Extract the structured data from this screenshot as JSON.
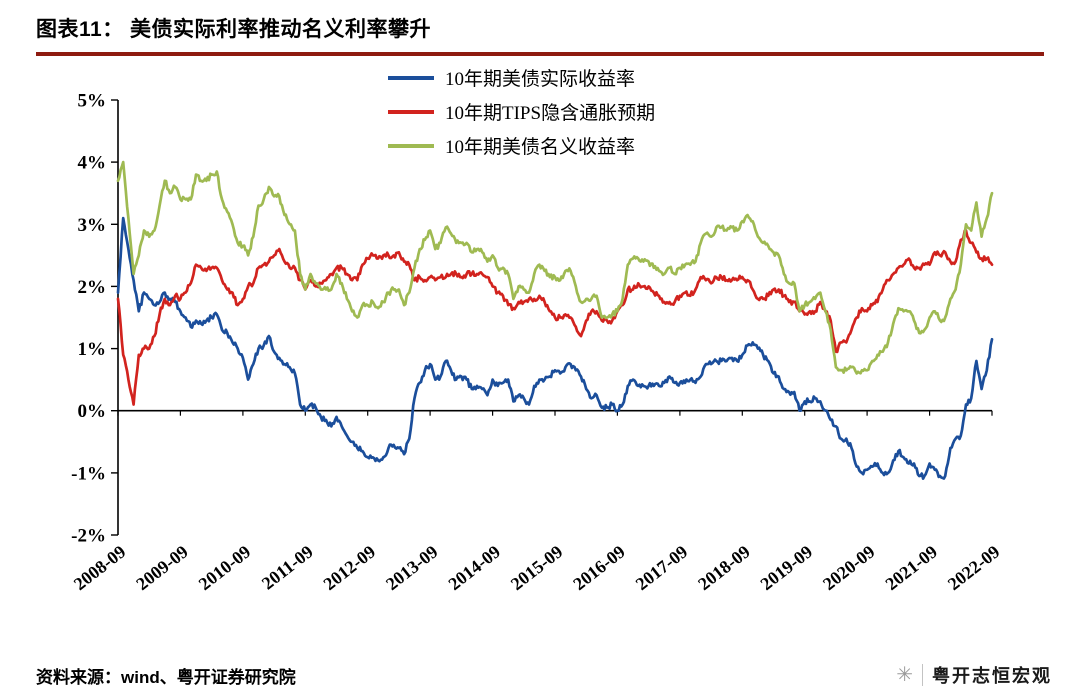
{
  "header": {
    "title": "图表11： 美债实际利率推动名义利率攀升",
    "accent_color": "#8e1b10"
  },
  "icons": {
    "watermark_logo": "✳"
  },
  "footer": {
    "source": "资料来源：wind、粤开证券研究院",
    "watermark": "粤开志恒宏观"
  },
  "chart_data": {
    "type": "line",
    "x_unit": "month",
    "x_range": [
      "2008-09",
      "2022-09"
    ],
    "ylim": [
      -2,
      5
    ],
    "grid": "none",
    "legend_position": "top-center",
    "y_ticks": [
      {
        "label": "5%",
        "value": 5
      },
      {
        "label": "4%",
        "value": 4
      },
      {
        "label": "3%",
        "value": 3
      },
      {
        "label": "2%",
        "value": 2
      },
      {
        "label": "1%",
        "value": 1
      },
      {
        "label": "0%",
        "value": 0
      },
      {
        "label": "-1%",
        "value": -1
      },
      {
        "label": "-2%",
        "value": -2
      }
    ],
    "x_ticks": [
      {
        "label": "2008-09",
        "month_index": 0
      },
      {
        "label": "2009-09",
        "month_index": 12
      },
      {
        "label": "2010-09",
        "month_index": 24
      },
      {
        "label": "2011-09",
        "month_index": 36
      },
      {
        "label": "2012-09",
        "month_index": 48
      },
      {
        "label": "2013-09",
        "month_index": 60
      },
      {
        "label": "2014-09",
        "month_index": 72
      },
      {
        "label": "2015-09",
        "month_index": 84
      },
      {
        "label": "2016-09",
        "month_index": 96
      },
      {
        "label": "2017-09",
        "month_index": 108
      },
      {
        "label": "2018-09",
        "month_index": 120
      },
      {
        "label": "2019-09",
        "month_index": 132
      },
      {
        "label": "2020-09",
        "month_index": 144
      },
      {
        "label": "2021-09",
        "month_index": 156
      },
      {
        "label": "2022-09",
        "month_index": 168
      }
    ],
    "series": [
      {
        "name": "10年期美债实际收益率",
        "color": "#1b4e9b",
        "values": [
          1.9,
          3.1,
          2.6,
          2.1,
          1.6,
          1.9,
          1.8,
          1.7,
          1.75,
          1.9,
          1.8,
          1.75,
          1.6,
          1.5,
          1.35,
          1.45,
          1.4,
          1.45,
          1.5,
          1.55,
          1.3,
          1.25,
          1.1,
          1.0,
          0.85,
          0.5,
          0.75,
          1.0,
          1.05,
          1.2,
          0.95,
          0.85,
          0.75,
          0.7,
          0.6,
          0.1,
          0.0,
          0.1,
          0.05,
          -0.1,
          -0.15,
          -0.25,
          -0.1,
          -0.25,
          -0.4,
          -0.5,
          -0.6,
          -0.65,
          -0.75,
          -0.75,
          -0.8,
          -0.75,
          -0.6,
          -0.55,
          -0.6,
          -0.7,
          -0.45,
          0.2,
          0.45,
          0.65,
          0.75,
          0.5,
          0.55,
          0.8,
          0.65,
          0.5,
          0.55,
          0.5,
          0.35,
          0.4,
          0.35,
          0.25,
          0.5,
          0.4,
          0.45,
          0.5,
          0.15,
          0.25,
          0.2,
          0.1,
          0.4,
          0.5,
          0.5,
          0.55,
          0.65,
          0.6,
          0.7,
          0.75,
          0.65,
          0.55,
          0.35,
          0.2,
          0.25,
          0.05,
          0.05,
          0.1,
          0.0,
          0.1,
          0.4,
          0.5,
          0.4,
          0.4,
          0.4,
          0.4,
          0.4,
          0.45,
          0.55,
          0.45,
          0.45,
          0.45,
          0.5,
          0.45,
          0.55,
          0.75,
          0.75,
          0.8,
          0.8,
          0.8,
          0.85,
          0.8,
          0.9,
          1.05,
          1.1,
          1.0,
          0.9,
          0.8,
          0.6,
          0.55,
          0.35,
          0.3,
          0.3,
          0.0,
          0.15,
          0.15,
          0.2,
          0.15,
          0.0,
          -0.15,
          -0.25,
          -0.45,
          -0.45,
          -0.6,
          -0.9,
          -1.0,
          -0.95,
          -0.9,
          -0.85,
          -1.0,
          -1.0,
          -0.8,
          -0.65,
          -0.75,
          -0.85,
          -0.85,
          -1.05,
          -1.05,
          -0.85,
          -0.95,
          -1.05,
          -1.05,
          -0.6,
          -0.45,
          -0.4,
          0.1,
          0.2,
          0.8,
          0.35,
          0.65,
          1.15
        ]
      },
      {
        "name": "10年期TIPS隐含通胀预期",
        "color": "#d2231e",
        "values": [
          1.8,
          0.9,
          0.5,
          0.1,
          0.9,
          1.0,
          1.0,
          1.2,
          1.55,
          1.8,
          1.7,
          1.85,
          1.8,
          1.9,
          2.05,
          2.35,
          2.3,
          2.25,
          2.3,
          2.3,
          2.1,
          1.95,
          1.9,
          1.7,
          1.8,
          2.0,
          2.05,
          2.3,
          2.35,
          2.4,
          2.5,
          2.6,
          2.4,
          2.3,
          2.3,
          2.1,
          1.95,
          2.1,
          2.0,
          2.05,
          2.1,
          2.2,
          2.3,
          2.3,
          2.2,
          2.1,
          2.1,
          2.35,
          2.45,
          2.5,
          2.45,
          2.5,
          2.5,
          2.5,
          2.55,
          2.4,
          2.35,
          2.1,
          2.15,
          2.1,
          2.15,
          2.1,
          2.15,
          2.15,
          2.2,
          2.2,
          2.15,
          2.2,
          2.2,
          2.2,
          2.2,
          2.15,
          2.0,
          1.9,
          1.85,
          1.7,
          1.65,
          1.75,
          1.75,
          1.8,
          1.8,
          1.85,
          1.75,
          1.6,
          1.5,
          1.5,
          1.55,
          1.5,
          1.35,
          1.2,
          1.45,
          1.6,
          1.6,
          1.45,
          1.45,
          1.45,
          1.6,
          1.7,
          1.95,
          1.95,
          2.05,
          2.0,
          2.0,
          1.9,
          1.85,
          1.75,
          1.75,
          1.75,
          1.85,
          1.9,
          1.85,
          1.95,
          2.15,
          2.1,
          2.05,
          2.15,
          2.15,
          2.1,
          2.1,
          2.1,
          2.15,
          2.1,
          1.95,
          1.8,
          1.8,
          1.85,
          1.95,
          1.95,
          1.85,
          1.75,
          1.75,
          1.6,
          1.55,
          1.6,
          1.6,
          1.75,
          1.6,
          1.45,
          0.95,
          1.1,
          1.1,
          1.3,
          1.5,
          1.65,
          1.6,
          1.7,
          1.75,
          1.95,
          2.1,
          2.2,
          2.3,
          2.35,
          2.45,
          2.3,
          2.3,
          2.35,
          2.35,
          2.55,
          2.5,
          2.55,
          2.4,
          2.4,
          2.75,
          2.9,
          2.7,
          2.55,
          2.45,
          2.45,
          2.35
        ]
      },
      {
        "name": "10年期美债名义收益率",
        "color": "#9fba52",
        "values": [
          3.7,
          4.0,
          3.1,
          2.2,
          2.5,
          2.9,
          2.8,
          2.9,
          3.3,
          3.7,
          3.5,
          3.6,
          3.4,
          3.4,
          3.4,
          3.8,
          3.7,
          3.7,
          3.8,
          3.85,
          3.4,
          3.2,
          3.0,
          2.7,
          2.65,
          2.5,
          2.8,
          3.3,
          3.4,
          3.6,
          3.45,
          3.45,
          3.15,
          3.0,
          2.9,
          2.2,
          1.95,
          2.2,
          2.05,
          1.95,
          1.95,
          1.95,
          2.2,
          2.05,
          1.8,
          1.6,
          1.5,
          1.7,
          1.7,
          1.75,
          1.65,
          1.75,
          1.9,
          1.95,
          1.95,
          1.7,
          1.9,
          2.3,
          2.6,
          2.75,
          2.9,
          2.6,
          2.7,
          2.95,
          2.85,
          2.7,
          2.7,
          2.7,
          2.55,
          2.6,
          2.55,
          2.4,
          2.5,
          2.3,
          2.3,
          2.2,
          1.8,
          2.0,
          1.95,
          1.9,
          2.2,
          2.35,
          2.25,
          2.15,
          2.15,
          2.1,
          2.25,
          2.25,
          2.0,
          1.75,
          1.8,
          1.8,
          1.85,
          1.5,
          1.5,
          1.55,
          1.6,
          1.8,
          2.35,
          2.45,
          2.45,
          2.4,
          2.4,
          2.3,
          2.25,
          2.2,
          2.3,
          2.2,
          2.3,
          2.35,
          2.35,
          2.4,
          2.7,
          2.85,
          2.8,
          2.95,
          2.95,
          2.9,
          2.95,
          2.9,
          3.05,
          3.15,
          3.05,
          2.8,
          2.7,
          2.65,
          2.55,
          2.5,
          2.2,
          2.05,
          2.05,
          1.6,
          1.7,
          1.75,
          1.8,
          1.9,
          1.6,
          1.3,
          0.7,
          0.65,
          0.65,
          0.7,
          0.6,
          0.65,
          0.65,
          0.8,
          0.9,
          0.95,
          1.1,
          1.4,
          1.65,
          1.6,
          1.6,
          1.45,
          1.25,
          1.3,
          1.5,
          1.6,
          1.45,
          1.5,
          1.8,
          1.95,
          2.35,
          3.0,
          2.9,
          3.35,
          2.8,
          3.1,
          3.5
        ]
      }
    ]
  }
}
